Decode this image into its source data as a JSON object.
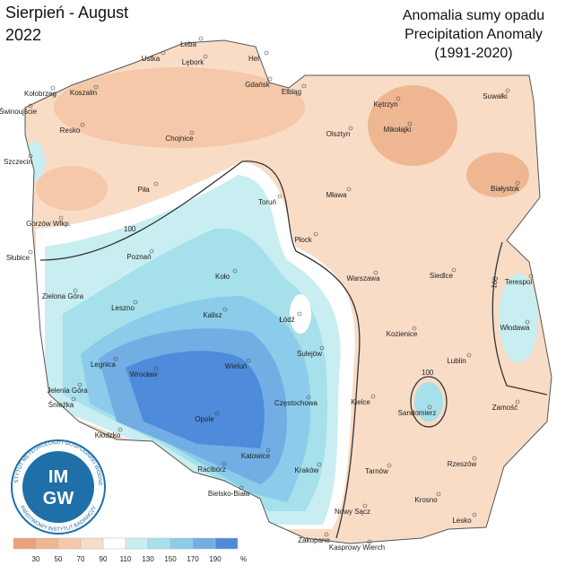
{
  "title": "Sierpień - August",
  "year": "2022",
  "subtitle": [
    "Anomalia sumy opadu",
    "Precipitation Anomaly",
    "(1991-2020)"
  ],
  "contour_labels": [
    "100",
    "100",
    "100"
  ],
  "cities": [
    "Łeba",
    "Hel",
    "Ustka",
    "Lębork",
    "Kołobrzeg",
    "Koszalin",
    "Gdańsk",
    "Elbląg",
    "Kętrzyn",
    "Suwałki",
    "Świnoujście",
    "Resko",
    "Chojnice",
    "Mikołajki",
    "Olsztyn",
    "Szczecin",
    "Białystok",
    "Piła",
    "Toruń",
    "Mława",
    "Gorzów Wlkp.",
    "Płock",
    "Słubice",
    "Poznań",
    "Siedlce",
    "Warszawa",
    "Terespol",
    "Koło",
    "Zielona Góra",
    "Leszno",
    "Kalisz",
    "Łódź",
    "Włodawa",
    "Kozienice",
    "Sulejów",
    "Lublin",
    "Legnica",
    "Wrocław",
    "Wieluń",
    "Jelenia Góra",
    "Częstochowa",
    "Kielce",
    "Sandomierz",
    "Zamość",
    "Śnieżka",
    "Opole",
    "Kłodzko",
    "Katowice",
    "Racibórz",
    "Rzeszów",
    "Tarnów",
    "Kraków",
    "Bielsko-Biała",
    "Krosno",
    "Nowy Sącz",
    "Lesko",
    "Zakopane",
    "Kasprowy Wierch"
  ],
  "legend": {
    "ticks": [
      30,
      50,
      70,
      90,
      110,
      130,
      150,
      170,
      190
    ],
    "unit": "%",
    "colors": [
      "#e9a27c",
      "#efb692",
      "#f4c8a8",
      "#f9dcc6",
      "#ffffff",
      "#c8eef2",
      "#a5e0eb",
      "#8ccbe9",
      "#72aee4",
      "#4f8bdb"
    ]
  },
  "logo": {
    "top": "INSTYTUT METEOROLOGII I GOSPODARKI WODNEJ",
    "bottom": "PAŃSTWOWY INSTYTUT BADAWCZY",
    "im": "IM",
    "gw": "GW"
  }
}
